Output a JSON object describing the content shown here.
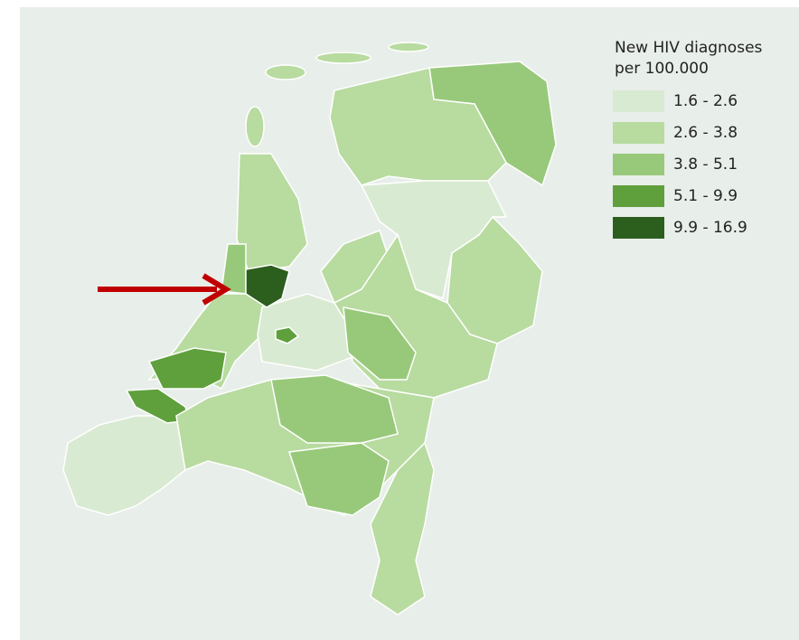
{
  "legend": {
    "title_lines": [
      "New HIV diagnoses",
      "per 100.000"
    ],
    "items": [
      {
        "label": "1.6 - 2.6",
        "color": "#d9ead2"
      },
      {
        "label": "2.6 - 3.8",
        "color": "#b8dba0"
      },
      {
        "label": "3.8 - 5.1",
        "color": "#98c97a"
      },
      {
        "label": "5.1 - 9.9",
        "color": "#5fa03d"
      },
      {
        "label": "9.9 - 16.9",
        "color": "#2c5e1e"
      }
    ]
  }
}
